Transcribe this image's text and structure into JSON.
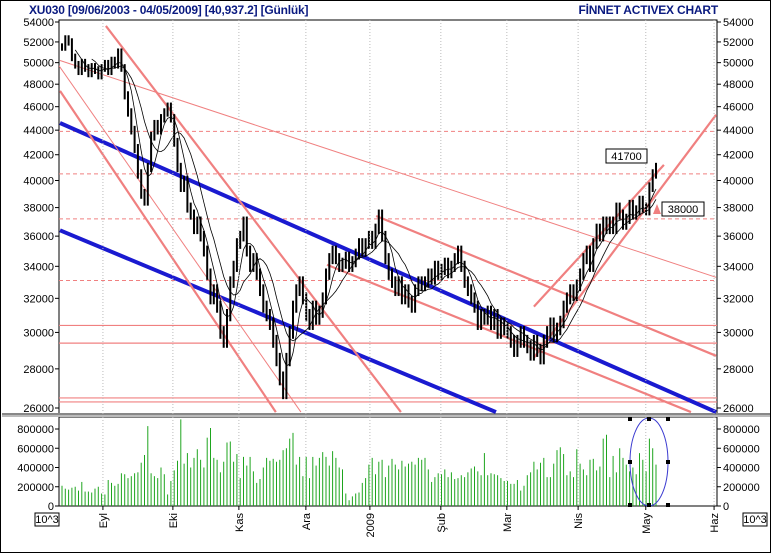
{
  "header": {
    "symbol": "XU030",
    "title": "XU030  [09/06/2003 - 04/05/2009]  [40,937.2]  [Günlük]",
    "brand": "FİNNET ACTIVEX CHART"
  },
  "chart_data": {
    "type": "ohlc-bar",
    "title": "XU030 [09/06/2003 - 04/05/2009] [40,937.2] [Günlük]",
    "price_axis": {
      "scale": "log",
      "min": 26000,
      "max": 54000,
      "ticks": [
        54000,
        52000,
        50000,
        48000,
        46000,
        44000,
        42000,
        40000,
        38000,
        36000,
        34000,
        32000,
        30000,
        28000,
        26000
      ]
    },
    "volume_axis": {
      "min": 0,
      "max": 900000,
      "ticks": [
        0,
        200000,
        400000,
        600000,
        800000
      ],
      "unit_label": "10^3"
    },
    "x_labels": [
      {
        "label": "Eyl",
        "bar": 12.4
      },
      {
        "label": "Eki",
        "bar": 33.6
      },
      {
        "label": "Kas",
        "bar": 53.6
      },
      {
        "label": "Ara",
        "bar": 73.9
      },
      {
        "label": "2009",
        "bar": 93.3
      },
      {
        "label": "Şub",
        "bar": 114.8
      },
      {
        "label": "Mar",
        "bar": 134.8
      },
      {
        "label": "Nis",
        "bar": 156.4
      },
      {
        "label": "May",
        "bar": 176.9
      },
      {
        "label": "Haz",
        "bar": 197.6
      }
    ],
    "bar_range": 1200,
    "closes": [
      51500,
      52300,
      52000,
      50500,
      49800,
      49200,
      50000,
      49500,
      49000,
      49600,
      49300,
      48800,
      49500,
      49900,
      49200,
      50200,
      49800,
      51000,
      49500,
      47000,
      45500,
      44000,
      42500,
      40500,
      39000,
      38500,
      41000,
      43500,
      44500,
      44000,
      45000,
      45500,
      46000,
      45000,
      43000,
      41000,
      39500,
      40000,
      38000,
      37500,
      36500,
      37000,
      36000,
      35000,
      33500,
      32000,
      32500,
      31500,
      30000,
      29500,
      31000,
      33000,
      34000,
      35500,
      36000,
      37000,
      35000,
      34000,
      34500,
      33500,
      32500,
      31500,
      31000,
      30500,
      29500,
      28500,
      27500,
      26800,
      28500,
      30000,
      31500,
      32500,
      33000,
      32000,
      31000,
      30500,
      31500,
      30800,
      31200,
      32000,
      33500,
      34500,
      35000,
      34500,
      34000,
      34200,
      34600,
      34000,
      34300,
      34800,
      35500,
      35000,
      35500,
      36000,
      35500,
      36500,
      37500,
      36000,
      34500,
      33500,
      33000,
      32500,
      33000,
      32000,
      32500,
      31800,
      31500,
      32500,
      33000,
      32800,
      33000,
      33500,
      33200,
      34000,
      33500,
      33800,
      34200,
      33600,
      34000,
      34500,
      35000,
      34000,
      33000,
      32500,
      32000,
      31500,
      30500,
      31000,
      30800,
      31200,
      30500,
      31000,
      30000,
      30500,
      30200,
      30000,
      29500,
      29000,
      29500,
      30000,
      29500,
      29200,
      28800,
      29500,
      29000,
      28600,
      29500,
      30000,
      30500,
      29800,
      30200,
      30600,
      31500,
      32000,
      32500,
      32200,
      32800,
      33500,
      34500,
      35000,
      34000,
      35500,
      36500,
      36000,
      37000,
      36500,
      37000,
      36500,
      38000,
      37500,
      36800,
      37200,
      38200,
      37500,
      37800,
      38500,
      38000,
      37800,
      39500,
      40500,
      41000
    ],
    "volumes_thousands": [
      210,
      180,
      170,
      190,
      200,
      160,
      250,
      150,
      150,
      140,
      180,
      200,
      130,
      120,
      270,
      240,
      210,
      230,
      340,
      330,
      290,
      310,
      340,
      350,
      450,
      530,
      830,
      340,
      310,
      290,
      400,
      330,
      120,
      260,
      370,
      470,
      900,
      440,
      550,
      400,
      500,
      590,
      480,
      400,
      710,
      810,
      500,
      480,
      350,
      460,
      660,
      670,
      460,
      540,
      290,
      510,
      420,
      510,
      360,
      240,
      280,
      400,
      500,
      470,
      490,
      460,
      480,
      580,
      600,
      700,
      760,
      430,
      510,
      310,
      510,
      290,
      510,
      420,
      500,
      560,
      510,
      420,
      570,
      500,
      400,
      380,
      130,
      60,
      100,
      130,
      140,
      240,
      290,
      430,
      500,
      330,
      460,
      480,
      300,
      420,
      490,
      430,
      380,
      470,
      410,
      440,
      460,
      430,
      500,
      480,
      500,
      380,
      250,
      300,
      340,
      330,
      380,
      300,
      350,
      280,
      290,
      320,
      300,
      350,
      390,
      410,
      360,
      320,
      550,
      320,
      340,
      330,
      320,
      290,
      260,
      260,
      230,
      230,
      270,
      160,
      210,
      320,
      350,
      460,
      380,
      450,
      500,
      300,
      300,
      440,
      580,
      610,
      540,
      320,
      360,
      300,
      590,
      440,
      380,
      320,
      480,
      490,
      370,
      410,
      700,
      740,
      300,
      520,
      350,
      600,
      500,
      430,
      360,
      400,
      330,
      550,
      480,
      360,
      700,
      600,
      430
    ],
    "moving_averages": [
      5,
      10
    ],
    "trendlines": [
      {
        "name": "blue-channel-upper",
        "color": "#1a1ad0",
        "weight": "thick",
        "from": [
          -0.6,
          44600
        ],
        "to": [
          198.2,
          25800
        ]
      },
      {
        "name": "blue-channel-lower",
        "color": "#1a1ad0",
        "weight": "thick",
        "from": [
          -0.6,
          36400
        ],
        "to": [
          131.5,
          25800
        ]
      },
      {
        "name": "red-down-a",
        "color": "#f08080",
        "weight": "medium",
        "from": [
          13.3,
          53600
        ],
        "to": [
          102.7,
          25800
        ]
      },
      {
        "name": "red-down-b",
        "color": "#f08080",
        "weight": "medium",
        "from": [
          -0.6,
          47400
        ],
        "to": [
          64.8,
          25800
        ]
      },
      {
        "name": "red-down-thin",
        "color": "#f08080",
        "weight": "thin",
        "from": [
          -0.9,
          49700
        ],
        "to": [
          72.4,
          25800
        ]
      },
      {
        "name": "red-long-thin",
        "color": "#f08080",
        "weight": "thin",
        "from": [
          -0.6,
          50200
        ],
        "to": [
          198.2,
          33300
        ]
      },
      {
        "name": "red-channel-upper",
        "color": "#f08080",
        "weight": "medium",
        "from": [
          95.2,
          37400
        ],
        "to": [
          198.2,
          28700
        ]
      },
      {
        "name": "red-channel-lower",
        "color": "#f08080",
        "weight": "medium",
        "from": [
          80.3,
          34100
        ],
        "to": [
          190.6,
          25800
        ]
      },
      {
        "name": "red-up-upper",
        "color": "#f08080",
        "weight": "medium",
        "from": [
          143.0,
          31500
        ],
        "to": [
          182.4,
          41200
        ]
      },
      {
        "name": "red-up-lower",
        "color": "#f08080",
        "weight": "medium",
        "from": [
          143.0,
          28600
        ],
        "to": [
          198.2,
          45300
        ]
      }
    ],
    "levels_dashed": [
      43900,
      40500,
      37200,
      33100
    ],
    "levels_solid": [
      30400,
      29400,
      26500,
      26300
    ],
    "annotations": [
      {
        "label": "41700",
        "bar": 180,
        "price": 41700
      },
      {
        "label": "38000",
        "bar": 180,
        "price": 38000
      }
    ]
  }
}
